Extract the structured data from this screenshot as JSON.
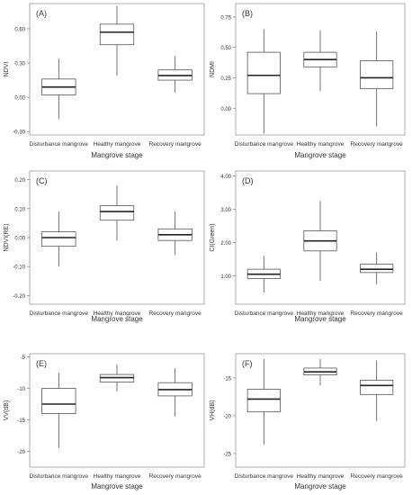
{
  "chart_data": [
    {
      "type": "box",
      "panel_label": "(A)",
      "ylabel": "NDVI",
      "xlabel": "Mangrove stage",
      "categories": [
        "Disturbance mangrove",
        "Healthy mangrove",
        "Recovery mangrove"
      ],
      "yticks": [
        -0.3,
        0.0,
        0.3,
        0.6
      ],
      "ytick_labels": [
        "-0.30",
        "0.00",
        "0.30",
        "0.60"
      ],
      "ylim": [
        -0.33,
        0.82
      ],
      "boxes": [
        {
          "min": -0.19,
          "q1": 0.02,
          "median": 0.09,
          "q3": 0.16,
          "max": 0.34
        },
        {
          "min": 0.19,
          "q1": 0.46,
          "median": 0.57,
          "q3": 0.64,
          "max": 0.8
        },
        {
          "min": 0.04,
          "q1": 0.15,
          "median": 0.19,
          "q3": 0.24,
          "max": 0.36
        }
      ]
    },
    {
      "type": "box",
      "panel_label": "(B)",
      "ylabel": "NDMI",
      "xlabel": "Mangrove stage",
      "categories": [
        "Disturbance mangrove",
        "Healthy mangrove",
        "Recovery mangrove"
      ],
      "yticks": [
        0.0,
        0.25,
        0.5,
        0.75
      ],
      "ytick_labels": [
        "0.00",
        "0.25",
        "0.50",
        "0.75"
      ],
      "ylim": [
        -0.22,
        0.86
      ],
      "boxes": [
        {
          "min": -0.21,
          "q1": 0.12,
          "median": 0.27,
          "q3": 0.46,
          "max": 0.65
        },
        {
          "min": 0.14,
          "q1": 0.34,
          "median": 0.4,
          "q3": 0.46,
          "max": 0.64
        },
        {
          "min": -0.15,
          "q1": 0.16,
          "median": 0.25,
          "q3": 0.39,
          "max": 0.63
        }
      ]
    },
    {
      "type": "box",
      "panel_label": "(C)",
      "ylabel": "NDVI(RE)",
      "xlabel": "Mangrove stage",
      "categories": [
        "Disturbance mangrove",
        "Healthy mangrove",
        "Recovery mangrove"
      ],
      "yticks": [
        -0.2,
        -0.1,
        0.0,
        0.1,
        0.2
      ],
      "ytick_labels": [
        "-0.20",
        "-0.10",
        "0.00",
        "0.10",
        "0.20"
      ],
      "ylim": [
        -0.23,
        0.23
      ],
      "boxes": [
        {
          "min": -0.1,
          "q1": -0.03,
          "median": 0.0,
          "q3": 0.02,
          "max": 0.09
        },
        {
          "min": -0.01,
          "q1": 0.06,
          "median": 0.09,
          "q3": 0.11,
          "max": 0.18
        },
        {
          "min": -0.06,
          "q1": -0.01,
          "median": 0.01,
          "q3": 0.03,
          "max": 0.09
        }
      ]
    },
    {
      "type": "box",
      "panel_label": "(D)",
      "ylabel": "CI(Green)",
      "xlabel": "Mangrove stage",
      "categories": [
        "Disturbance mangrove",
        "Healthy mangrove",
        "Recovery mangrove"
      ],
      "yticks": [
        1.0,
        2.0,
        3.0,
        4.0
      ],
      "ytick_labels": [
        "1.00",
        "2.00",
        "3.00",
        "4.00"
      ],
      "ylim": [
        0.15,
        4.15
      ],
      "boxes": [
        {
          "min": 0.5,
          "q1": 0.92,
          "median": 1.05,
          "q3": 1.2,
          "max": 1.6
        },
        {
          "min": 0.85,
          "q1": 1.75,
          "median": 2.05,
          "q3": 2.35,
          "max": 3.25
        },
        {
          "min": 0.75,
          "q1": 1.1,
          "median": 1.2,
          "q3": 1.35,
          "max": 1.7
        }
      ]
    },
    {
      "type": "box",
      "panel_label": "(E)",
      "ylabel": "VV(dB)",
      "xlabel": "Mangrove stage",
      "categories": [
        "Disturbance mangrove",
        "Healthy mangrove",
        "Recovery mangrove"
      ],
      "yticks": [
        -20,
        -15,
        -10,
        -5
      ],
      "ytick_labels": [
        "-20",
        "-15",
        "-10",
        "-5"
      ],
      "ylim": [
        -22.5,
        -4.5
      ],
      "boxes": [
        {
          "min": -19.5,
          "q1": -14.0,
          "median": -12.5,
          "q3": -10.0,
          "max": -7.5
        },
        {
          "min": -10.5,
          "q1": -9.0,
          "median": -8.3,
          "q3": -7.8,
          "max": -6.2
        },
        {
          "min": -14.5,
          "q1": -11.2,
          "median": -10.2,
          "q3": -9.1,
          "max": -6.8
        }
      ]
    },
    {
      "type": "box",
      "panel_label": "(F)",
      "ylabel": "VH(dB)",
      "xlabel": "Mangrove stage",
      "categories": [
        "Disturbance mangrove",
        "Healthy mangrove",
        "Recovery mangrove"
      ],
      "yticks": [
        -25,
        -20,
        -15
      ],
      "ytick_labels": [
        "-25",
        "-20",
        "-15"
      ],
      "ylim": [
        -26.8,
        -11.8
      ],
      "boxes": [
        {
          "min": -23.8,
          "q1": -19.5,
          "median": -17.8,
          "q3": -16.5,
          "max": -12.5
        },
        {
          "min": -16.0,
          "q1": -14.6,
          "median": -14.2,
          "q3": -13.7,
          "max": -12.5
        },
        {
          "min": -20.7,
          "q1": -17.2,
          "median": -16.0,
          "q3": -15.3,
          "max": -12.7
        }
      ]
    }
  ]
}
